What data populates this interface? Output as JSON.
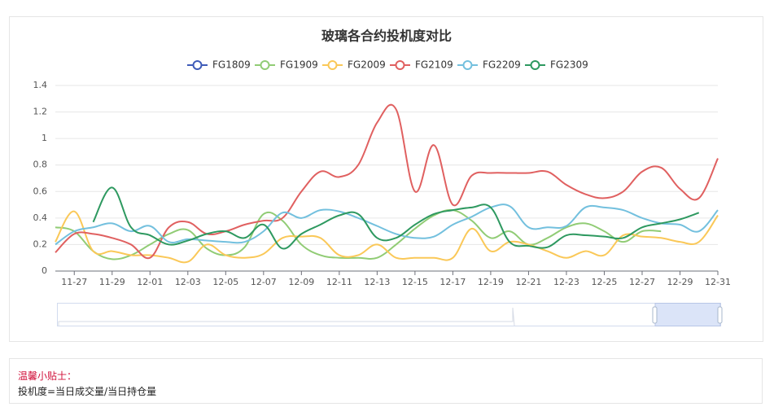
{
  "chart_data": {
    "type": "line",
    "title": "玻璃各合约投机度对比",
    "categories": [
      null,
      "11-27",
      null,
      "11-29",
      null,
      "12-01",
      null,
      "12-03",
      null,
      "12-05",
      null,
      "12-07",
      null,
      "12-09",
      null,
      "12-11",
      null,
      "12-13",
      null,
      "12-15",
      null,
      "12-17",
      null,
      "12-19",
      null,
      "12-21",
      null,
      "12-23",
      null,
      "12-25",
      null,
      "12-27",
      null,
      "12-29",
      null,
      "12-31"
    ],
    "series": [
      {
        "name": "FG1809",
        "color": "#3e5bb8",
        "values": [
          null,
          null,
          null,
          null,
          null,
          null,
          null,
          null,
          null,
          null,
          null,
          null,
          null,
          null,
          null,
          null,
          null,
          null,
          null,
          null,
          null,
          null,
          null,
          null,
          null,
          null,
          null,
          null,
          null,
          null,
          null,
          null,
          null,
          null,
          null,
          null
        ]
      },
      {
        "name": "FG1909",
        "color": "#91cc75",
        "values": [
          0.33,
          0.3,
          0.15,
          0.09,
          0.12,
          0.2,
          0.28,
          0.31,
          0.17,
          0.12,
          0.18,
          0.43,
          0.38,
          0.2,
          0.12,
          0.1,
          0.1,
          0.1,
          0.2,
          0.32,
          0.42,
          0.46,
          0.38,
          0.25,
          0.3,
          0.2,
          0.25,
          0.33,
          0.36,
          0.3,
          0.22,
          0.3,
          0.3,
          null,
          null,
          null
        ]
      },
      {
        "name": "FG2009",
        "color": "#fac858",
        "values": [
          0.22,
          0.45,
          0.15,
          0.15,
          0.12,
          0.12,
          0.1,
          0.07,
          0.2,
          0.12,
          0.1,
          0.13,
          0.25,
          0.26,
          0.25,
          0.12,
          0.12,
          0.2,
          0.1,
          0.1,
          0.1,
          0.1,
          0.32,
          0.15,
          0.22,
          0.2,
          0.15,
          0.1,
          0.15,
          0.12,
          0.27,
          0.26,
          0.25,
          0.22,
          0.22,
          0.42
        ]
      },
      {
        "name": "FG2109",
        "color": "#e06060",
        "values": [
          0.14,
          0.28,
          0.28,
          0.25,
          0.2,
          0.1,
          0.33,
          0.37,
          0.28,
          0.3,
          0.35,
          0.38,
          0.4,
          0.6,
          0.75,
          0.71,
          0.8,
          1.12,
          1.22,
          0.6,
          0.95,
          0.5,
          0.72,
          0.74,
          0.74,
          0.74,
          0.75,
          0.65,
          0.58,
          0.55,
          0.6,
          0.75,
          0.78,
          0.62,
          0.55,
          0.85
        ]
      },
      {
        "name": "FG2209",
        "color": "#73c0de",
        "values": [
          0.2,
          0.3,
          0.33,
          0.36,
          0.3,
          0.34,
          0.22,
          0.24,
          0.23,
          0.22,
          0.22,
          0.3,
          0.44,
          0.4,
          0.46,
          0.45,
          0.4,
          0.34,
          0.28,
          0.25,
          0.26,
          0.35,
          0.41,
          0.48,
          0.49,
          0.33,
          0.33,
          0.34,
          0.48,
          0.48,
          0.46,
          0.4,
          0.36,
          0.35,
          0.3,
          0.46
        ]
      },
      {
        "name": "FG2309",
        "color": "#2e9960",
        "values": [
          null,
          null,
          0.37,
          0.63,
          0.33,
          0.27,
          0.2,
          0.23,
          0.28,
          0.3,
          0.25,
          0.35,
          0.17,
          0.28,
          0.35,
          0.42,
          0.43,
          0.25,
          0.25,
          0.35,
          0.43,
          0.46,
          0.48,
          0.48,
          0.22,
          0.19,
          0.18,
          0.27,
          0.27,
          0.26,
          0.25,
          0.33,
          0.36,
          0.39,
          0.44,
          null
        ]
      }
    ],
    "ylim": [
      0,
      1.4
    ],
    "yticks": [
      0,
      0.2,
      0.4,
      0.6,
      0.8,
      1,
      1.2,
      1.4
    ],
    "grid": true
  },
  "tip": {
    "title": "温馨小贴士：",
    "text": "投机度=当日成交量/当日持仓量"
  }
}
